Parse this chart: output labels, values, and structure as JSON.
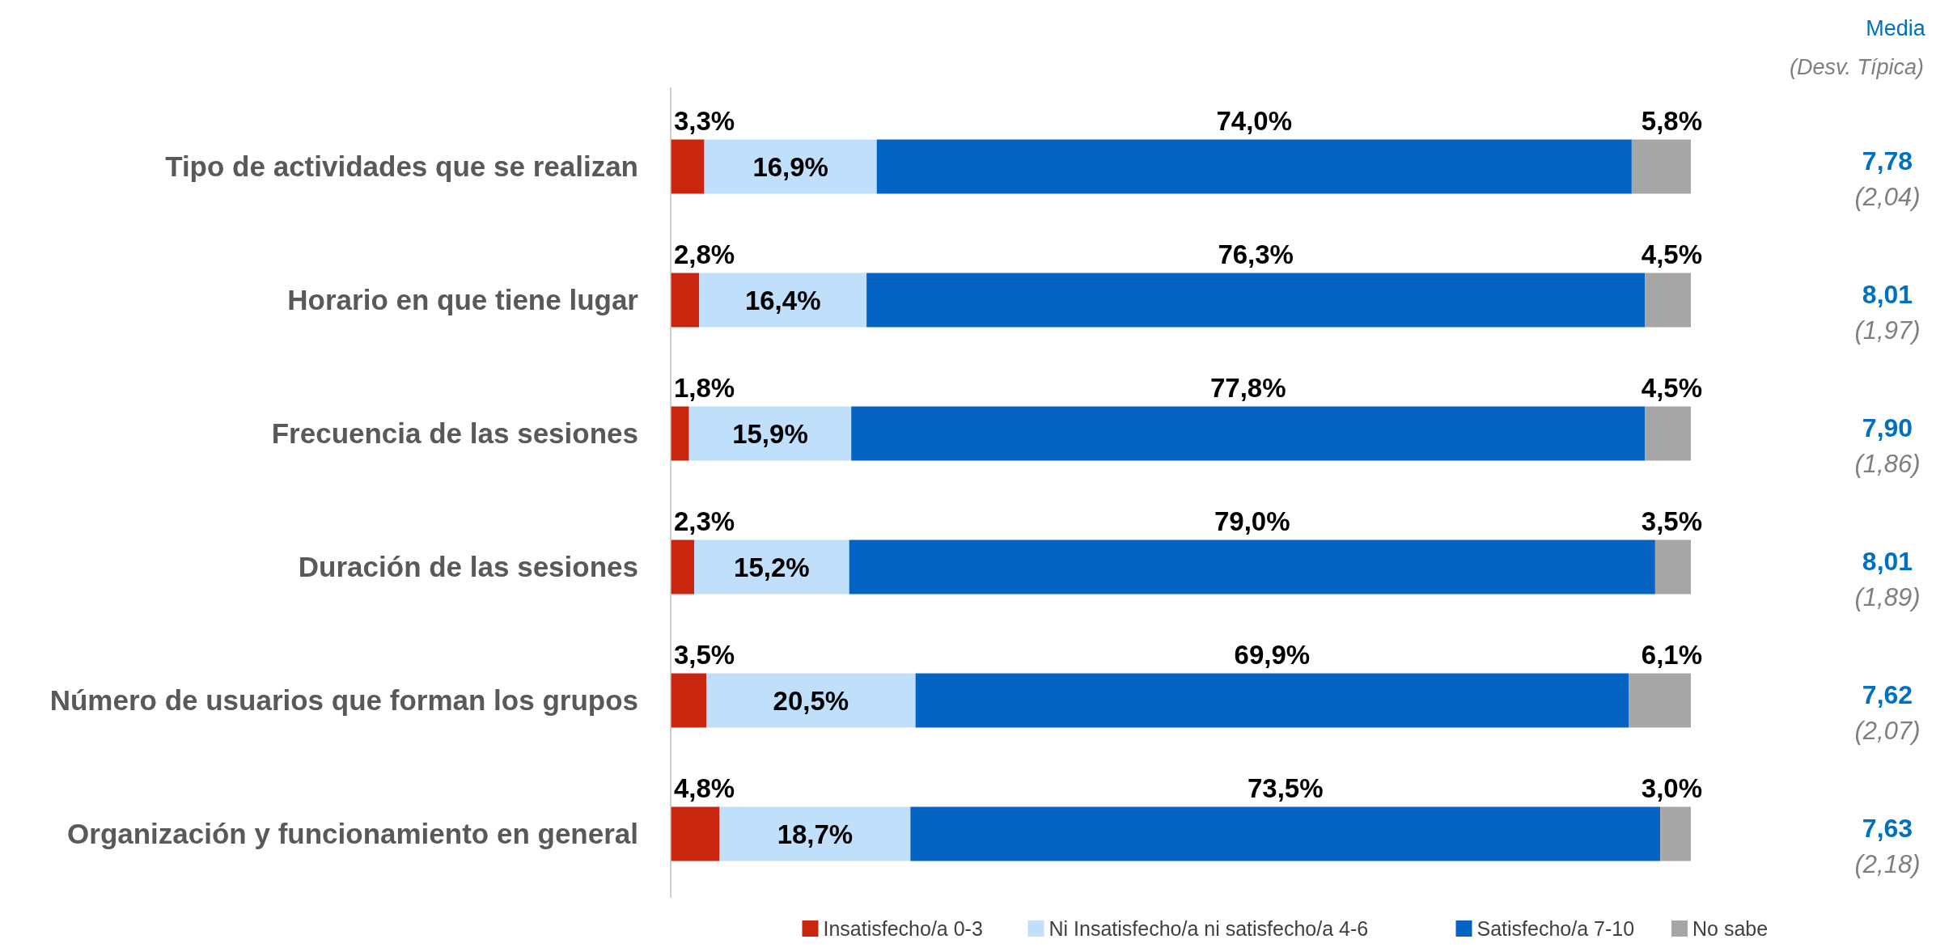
{
  "chart_data": {
    "type": "bar",
    "orientation": "horizontal",
    "stacked": true,
    "categories": [
      "Tipo de actividades que se realizan",
      "Horario en que tiene lugar",
      "Frecuencia de las sesiones",
      "Duración de las sesiones",
      "Número de usuarios que forman los grupos",
      "Organización y funcionamiento en general"
    ],
    "xlim": [
      0,
      100
    ],
    "tick_labels": "y",
    "legend": "bottom",
    "series": [
      {
        "name": "Insatisfecho/a 0-3",
        "color": "#c8260f",
        "values": [
          3.3,
          2.8,
          1.8,
          2.3,
          3.5,
          4.8
        ],
        "value_labels": [
          "3,3%",
          "2,8%",
          "1,8%",
          "2,3%",
          "3,5%",
          "4,8%"
        ]
      },
      {
        "name": "Ni  Insatisfecho/a ni satisfecho/a 4-6",
        "color": "#bfdffb",
        "values": [
          16.9,
          16.4,
          15.9,
          15.2,
          20.5,
          18.7
        ],
        "value_labels": [
          "16,9%",
          "16,4%",
          "15,9%",
          "15,2%",
          "20,5%",
          "18,7%"
        ]
      },
      {
        "name": "Satisfecho/a 7-10",
        "color": "#0563c1",
        "values": [
          74.0,
          76.3,
          77.8,
          79.0,
          69.9,
          73.5
        ],
        "value_labels": [
          "74,0%",
          "76,3%",
          "77,8%",
          "79,0%",
          "69,9%",
          "73,5%"
        ]
      },
      {
        "name": "No sabe",
        "color": "#a6a6a6",
        "values": [
          5.8,
          4.5,
          4.5,
          3.5,
          6.1,
          3.0
        ],
        "value_labels": [
          "5,8%",
          "4,5%",
          "4,5%",
          "3,5%",
          "6,1%",
          "3,0%"
        ]
      }
    ],
    "annotations": [
      "Media",
      "(Desv. Típica)",
      "7,78",
      "(2,04)",
      "8,01",
      "(1,97)",
      "7,90",
      "(1,86)",
      "8,01",
      "(1,89)",
      "7,62",
      "(2,07)",
      "7,63",
      "(2,18)"
    ]
  }
}
